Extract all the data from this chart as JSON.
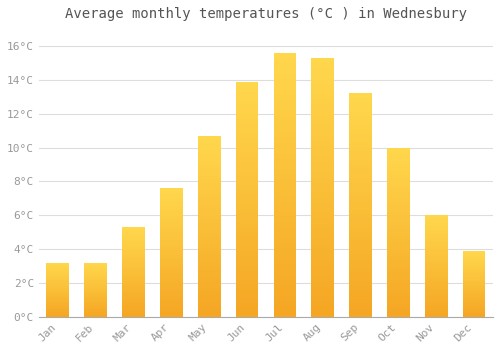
{
  "title": "Average monthly temperatures (°C ) in Wednesbury",
  "months": [
    "Jan",
    "Feb",
    "Mar",
    "Apr",
    "May",
    "Jun",
    "Jul",
    "Aug",
    "Sep",
    "Oct",
    "Nov",
    "Dec"
  ],
  "temperatures": [
    3.2,
    3.2,
    5.3,
    7.6,
    10.7,
    13.9,
    15.6,
    15.3,
    13.2,
    10.0,
    6.0,
    3.9
  ],
  "bar_color_bottom": "#F5A623",
  "bar_color_top": "#FFD84D",
  "yticks": [
    0,
    2,
    4,
    6,
    8,
    10,
    12,
    14,
    16
  ],
  "ylim": [
    0,
    17
  ],
  "background_color": "#FFFFFF",
  "plot_bg_color": "#FFFFFF",
  "grid_color": "#DDDDDD",
  "title_fontsize": 10,
  "tick_fontsize": 8,
  "font_color": "#999999",
  "bar_width": 0.6
}
